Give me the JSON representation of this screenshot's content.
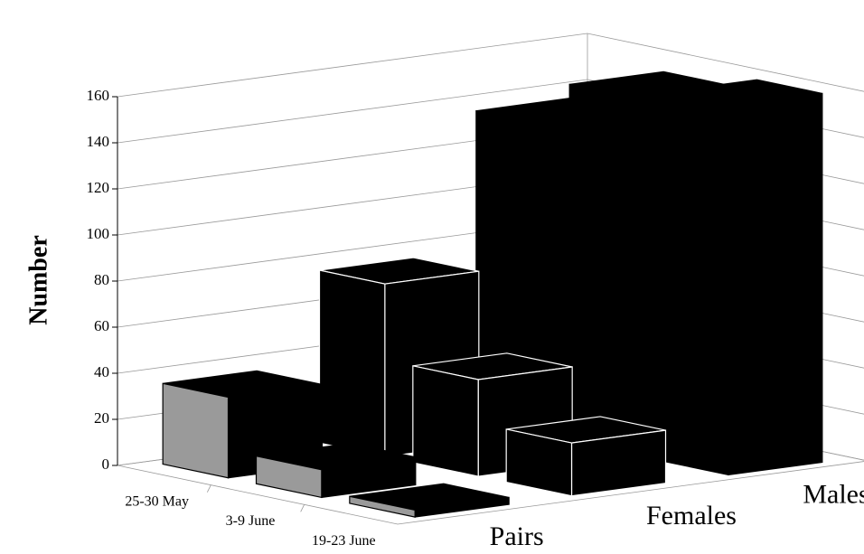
{
  "chart_data": {
    "type": "bar",
    "y_label": "Number",
    "categories": [
      "25-30 May",
      "3-9 June",
      "19-23 June"
    ],
    "series": [
      {
        "name": "Pairs",
        "color": "#9a9a9a",
        "values": [
          35,
          12,
          3
        ]
      },
      {
        "name": "Females",
        "color": "#000000",
        "values": [
          75,
          42,
          23
        ]
      },
      {
        "name": "Males",
        "color": "#000000",
        "values": [
          135,
          155,
          160
        ]
      }
    ],
    "ylim": [
      0,
      160
    ],
    "yticks": [
      0,
      20,
      40,
      60,
      80,
      100,
      120,
      140,
      160
    ],
    "grid": true
  }
}
